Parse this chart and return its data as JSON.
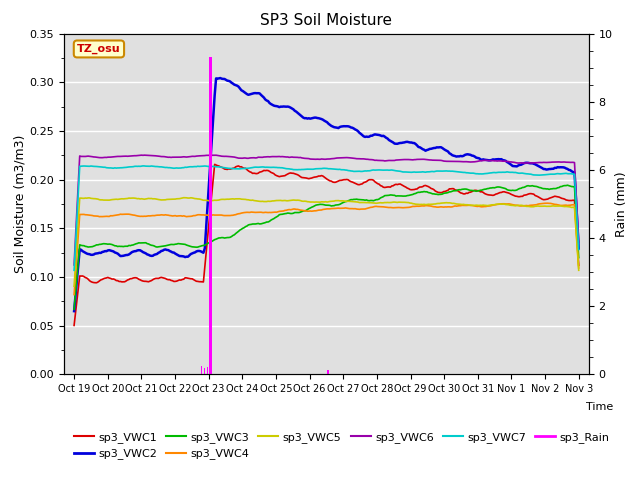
{
  "title": "SP3 Soil Moisture",
  "xlabel": "Time",
  "ylabel_left": "Soil Moisture (m3/m3)",
  "ylabel_right": "Rain (mm)",
  "ylim_left": [
    0.0,
    0.35
  ],
  "ylim_right": [
    0.0,
    10.0
  ],
  "bg_color": "#e0e0e0",
  "label_box": "TZ_osu",
  "label_box_color": "#ffffcc",
  "label_box_edge": "#cc8800",
  "xtick_labels": [
    "Oct 19",
    "Oct 20",
    "Oct 21",
    "Oct 22",
    "Oct 23",
    "Oct 24",
    "Oct 25",
    "Oct 26",
    "Oct 27",
    "Oct 28",
    "Oct 29",
    "Oct 30",
    "Oct 31",
    "Nov 1",
    "Nov 2",
    "Nov 3"
  ],
  "series_order": [
    "sp3_VWC1",
    "sp3_VWC2",
    "sp3_VWC3",
    "sp3_VWC4",
    "sp3_VWC5",
    "sp3_VWC6",
    "sp3_VWC7"
  ],
  "series": {
    "sp3_VWC1": {
      "color": "#dd0000",
      "linewidth": 1.2
    },
    "sp3_VWC2": {
      "color": "#0000dd",
      "linewidth": 1.8
    },
    "sp3_VWC3": {
      "color": "#00bb00",
      "linewidth": 1.2
    },
    "sp3_VWC4": {
      "color": "#ff8800",
      "linewidth": 1.2
    },
    "sp3_VWC5": {
      "color": "#cccc00",
      "linewidth": 1.2
    },
    "sp3_VWC6": {
      "color": "#9900aa",
      "linewidth": 1.2
    },
    "sp3_VWC7": {
      "color": "#00cccc",
      "linewidth": 1.2
    }
  },
  "rain_color": "#ff00ff",
  "legend_order": [
    "sp3_VWC1",
    "sp3_VWC2",
    "sp3_VWC3",
    "sp3_VWC4",
    "sp3_VWC5",
    "sp3_VWC6",
    "sp3_VWC7",
    "sp3_Rain"
  ]
}
